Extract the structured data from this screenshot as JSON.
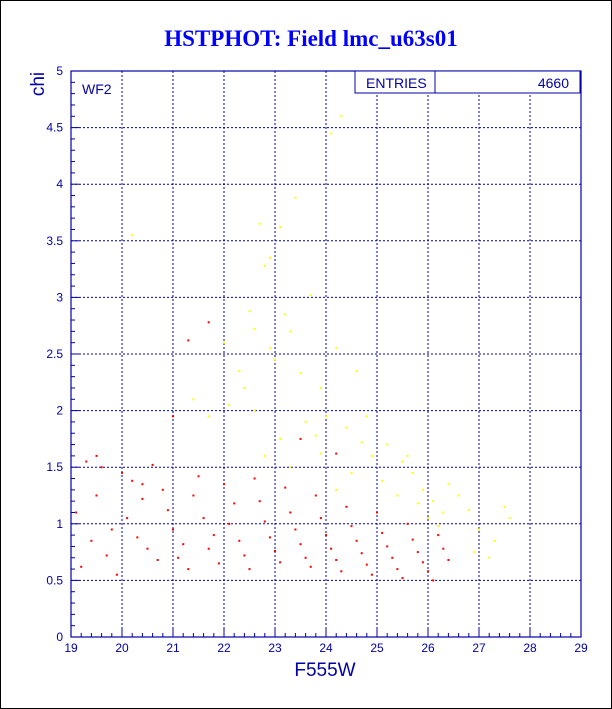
{
  "chart_data": {
    "type": "scatter",
    "title": "HSTPHOT: Field lmc_u63s01",
    "xlabel": "F555W",
    "ylabel": "chi",
    "xlim": [
      19,
      29
    ],
    "ylim": [
      0,
      5
    ],
    "x_ticks": [
      "19",
      "20",
      "21",
      "22",
      "23",
      "24",
      "25",
      "26",
      "27",
      "28",
      "29"
    ],
    "y_ticks": [
      "0",
      "0.5",
      "1",
      "1.5",
      "2",
      "2.5",
      "3",
      "3.5",
      "4",
      "4.5",
      "5"
    ],
    "grid": true,
    "panel_label": "WF2",
    "stats_box": {
      "label": "ENTRIES",
      "value": "4660"
    },
    "series_colors": {
      "main": "#ff0000",
      "secondary": "#ffff00"
    },
    "series": [
      {
        "color": "#ffff00",
        "points": [
          [
            22.7,
            3.65
          ],
          [
            22.9,
            3.35
          ],
          [
            23.4,
            3.88
          ],
          [
            22.8,
            3.28
          ],
          [
            23.1,
            3.62
          ],
          [
            23.7,
            3.02
          ],
          [
            22.5,
            2.88
          ],
          [
            22.6,
            2.72
          ],
          [
            23.2,
            2.85
          ],
          [
            23.3,
            2.7
          ],
          [
            22.9,
            2.55
          ],
          [
            23.0,
            2.45
          ],
          [
            23.5,
            2.33
          ],
          [
            23.9,
            2.2
          ],
          [
            24.2,
            2.55
          ],
          [
            24.6,
            2.35
          ],
          [
            22.3,
            2.35
          ],
          [
            22.4,
            2.2
          ],
          [
            22.1,
            2.05
          ],
          [
            22.6,
            2.0
          ],
          [
            23.6,
            1.9
          ],
          [
            23.8,
            1.78
          ],
          [
            24.0,
            1.95
          ],
          [
            24.4,
            1.85
          ],
          [
            24.7,
            1.72
          ],
          [
            24.9,
            1.6
          ],
          [
            25.2,
            1.7
          ],
          [
            25.5,
            1.55
          ],
          [
            25.7,
            1.45
          ],
          [
            25.9,
            1.3
          ],
          [
            26.1,
            1.2
          ],
          [
            26.3,
            1.1
          ],
          [
            26.6,
            1.25
          ],
          [
            27.0,
            0.95
          ],
          [
            27.3,
            0.85
          ],
          [
            27.6,
            1.05
          ],
          [
            26.9,
            0.75
          ],
          [
            27.2,
            0.7
          ],
          [
            24.3,
            4.6
          ],
          [
            24.1,
            4.45
          ],
          [
            20.2,
            3.55
          ],
          [
            22.0,
            2.6
          ],
          [
            21.7,
            1.95
          ],
          [
            21.4,
            2.1
          ],
          [
            22.8,
            1.6
          ],
          [
            23.3,
            1.5
          ],
          [
            23.9,
            1.62
          ],
          [
            24.5,
            1.45
          ],
          [
            25.1,
            1.38
          ],
          [
            25.4,
            1.25
          ],
          [
            25.8,
            1.18
          ],
          [
            26.0,
            1.05
          ],
          [
            26.4,
            1.35
          ],
          [
            26.8,
            1.12
          ],
          [
            24.8,
            1.95
          ],
          [
            23.1,
            1.75
          ],
          [
            24.2,
            1.3
          ],
          [
            25.6,
            1.6
          ],
          [
            26.2,
            0.98
          ],
          [
            27.5,
            1.15
          ]
        ]
      },
      {
        "color": "#ff0000",
        "points": [
          [
            19.3,
            1.55
          ],
          [
            19.5,
            1.6
          ],
          [
            19.6,
            1.5
          ],
          [
            19.1,
            1.1
          ],
          [
            19.4,
            0.85
          ],
          [
            19.7,
            0.72
          ],
          [
            19.2,
            0.62
          ],
          [
            19.8,
            0.95
          ],
          [
            19.5,
            1.25
          ],
          [
            19.9,
            0.55
          ],
          [
            20.0,
            1.45
          ],
          [
            20.2,
            1.38
          ],
          [
            20.4,
            1.22
          ],
          [
            20.1,
            1.05
          ],
          [
            20.3,
            0.88
          ],
          [
            20.5,
            0.78
          ],
          [
            20.7,
            0.68
          ],
          [
            20.6,
            1.52
          ],
          [
            20.8,
            1.3
          ],
          [
            20.9,
            1.12
          ],
          [
            21.0,
            0.95
          ],
          [
            21.2,
            0.82
          ],
          [
            21.1,
            0.7
          ],
          [
            21.3,
            0.6
          ],
          [
            21.5,
            1.42
          ],
          [
            21.4,
            1.25
          ],
          [
            21.6,
            1.05
          ],
          [
            21.8,
            0.9
          ],
          [
            21.7,
            0.78
          ],
          [
            21.9,
            0.65
          ],
          [
            22.0,
            1.35
          ],
          [
            22.2,
            1.18
          ],
          [
            22.1,
            1.0
          ],
          [
            22.3,
            0.85
          ],
          [
            22.4,
            0.72
          ],
          [
            22.5,
            0.6
          ],
          [
            22.6,
            1.4
          ],
          [
            22.7,
            1.2
          ],
          [
            22.8,
            1.02
          ],
          [
            22.9,
            0.88
          ],
          [
            23.0,
            0.76
          ],
          [
            23.1,
            0.66
          ],
          [
            23.2,
            1.32
          ],
          [
            23.3,
            1.1
          ],
          [
            23.4,
            0.95
          ],
          [
            23.5,
            0.82
          ],
          [
            23.6,
            0.7
          ],
          [
            23.7,
            0.62
          ],
          [
            23.8,
            1.25
          ],
          [
            23.9,
            1.05
          ],
          [
            24.0,
            0.9
          ],
          [
            24.1,
            0.78
          ],
          [
            24.2,
            0.68
          ],
          [
            24.3,
            0.58
          ],
          [
            24.4,
            1.15
          ],
          [
            24.5,
            0.98
          ],
          [
            24.6,
            0.85
          ],
          [
            24.7,
            0.74
          ],
          [
            24.8,
            0.64
          ],
          [
            24.9,
            0.55
          ],
          [
            25.0,
            1.1
          ],
          [
            25.1,
            0.92
          ],
          [
            25.2,
            0.8
          ],
          [
            25.3,
            0.7
          ],
          [
            25.4,
            0.6
          ],
          [
            25.5,
            0.52
          ],
          [
            25.6,
            1.0
          ],
          [
            25.7,
            0.86
          ],
          [
            25.8,
            0.75
          ],
          [
            25.9,
            0.66
          ],
          [
            26.0,
            0.58
          ],
          [
            26.1,
            0.5
          ],
          [
            26.2,
            0.9
          ],
          [
            26.3,
            0.78
          ],
          [
            26.4,
            0.68
          ],
          [
            21.7,
            2.78
          ],
          [
            21.3,
            2.62
          ],
          [
            21.0,
            1.95
          ],
          [
            20.4,
            1.35
          ],
          [
            23.5,
            1.75
          ],
          [
            24.2,
            1.62
          ]
        ]
      }
    ]
  }
}
